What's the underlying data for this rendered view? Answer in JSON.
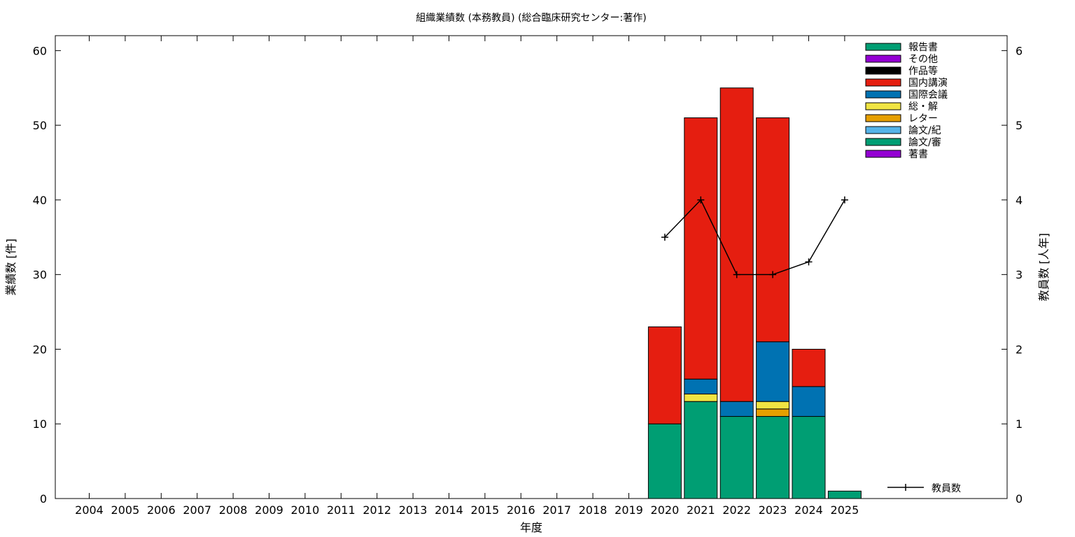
{
  "chart_data": {
    "type": "bar",
    "stacked": true,
    "title": "組織業績数 (本務教員) (総合臨床研究センター:著作)",
    "xlabel": "年度",
    "ylabel": "業績数 [件]",
    "y2label": "教員数 [人年]",
    "ylim": [
      0,
      62
    ],
    "y2lim": [
      0,
      6.2
    ],
    "yticks": [
      0,
      10,
      20,
      30,
      40,
      50,
      60
    ],
    "y2ticks": [
      0,
      1,
      2,
      3,
      4,
      5,
      6
    ],
    "categories": [
      "2004",
      "2005",
      "2006",
      "2007",
      "2008",
      "2009",
      "2010",
      "2011",
      "2012",
      "2013",
      "2014",
      "2015",
      "2016",
      "2017",
      "2018",
      "2019",
      "2020",
      "2021",
      "2022",
      "2023",
      "2024",
      "2025"
    ],
    "legend_position": "top-right",
    "series": [
      {
        "name": "著書",
        "color": "#9400d3",
        "values": [
          0,
          0,
          0,
          0,
          0,
          0,
          0,
          0,
          0,
          0,
          0,
          0,
          0,
          0,
          0,
          0,
          0,
          0,
          0,
          0,
          0,
          0
        ]
      },
      {
        "name": "論文/審",
        "color": "#009e73",
        "values": [
          0,
          0,
          0,
          0,
          0,
          0,
          0,
          0,
          0,
          0,
          0,
          0,
          0,
          0,
          0,
          0,
          10,
          13,
          11,
          11,
          11,
          1
        ]
      },
      {
        "name": "論文/紀",
        "color": "#56b4e9",
        "values": [
          0,
          0,
          0,
          0,
          0,
          0,
          0,
          0,
          0,
          0,
          0,
          0,
          0,
          0,
          0,
          0,
          0,
          0,
          0,
          0,
          0,
          0
        ]
      },
      {
        "name": "レター",
        "color": "#e69f00",
        "values": [
          0,
          0,
          0,
          0,
          0,
          0,
          0,
          0,
          0,
          0,
          0,
          0,
          0,
          0,
          0,
          0,
          0,
          0,
          0,
          1,
          0,
          0
        ]
      },
      {
        "name": "総・解",
        "color": "#f0e442",
        "values": [
          0,
          0,
          0,
          0,
          0,
          0,
          0,
          0,
          0,
          0,
          0,
          0,
          0,
          0,
          0,
          0,
          0,
          1,
          0,
          1,
          0,
          0
        ]
      },
      {
        "name": "国際会議",
        "color": "#0072b2",
        "values": [
          0,
          0,
          0,
          0,
          0,
          0,
          0,
          0,
          0,
          0,
          0,
          0,
          0,
          0,
          0,
          0,
          0,
          2,
          2,
          8,
          4,
          0
        ]
      },
      {
        "name": "国内講演",
        "color": "#e51e10",
        "values": [
          0,
          0,
          0,
          0,
          0,
          0,
          0,
          0,
          0,
          0,
          0,
          0,
          0,
          0,
          0,
          0,
          13,
          35,
          42,
          30,
          5,
          0
        ]
      },
      {
        "name": "作品等",
        "color": "#000000",
        "values": [
          0,
          0,
          0,
          0,
          0,
          0,
          0,
          0,
          0,
          0,
          0,
          0,
          0,
          0,
          0,
          0,
          0,
          0,
          0,
          0,
          0,
          0
        ]
      },
      {
        "name": "その他",
        "color": "#9400d3",
        "values": [
          0,
          0,
          0,
          0,
          0,
          0,
          0,
          0,
          0,
          0,
          0,
          0,
          0,
          0,
          0,
          0,
          0,
          0,
          0,
          0,
          0,
          0
        ]
      },
      {
        "name": "報告書",
        "color": "#009e73",
        "values": [
          0,
          0,
          0,
          0,
          0,
          0,
          0,
          0,
          0,
          0,
          0,
          0,
          0,
          0,
          0,
          0,
          0,
          0,
          0,
          0,
          0,
          0
        ]
      }
    ],
    "line": {
      "name": "教員数",
      "axis": "y2",
      "color": "#000000",
      "x": [
        "2020",
        "2021",
        "2022",
        "2023",
        "2024",
        "2025"
      ],
      "values": [
        3.5,
        4.0,
        3.0,
        3.0,
        3.17,
        4.0
      ]
    }
  }
}
